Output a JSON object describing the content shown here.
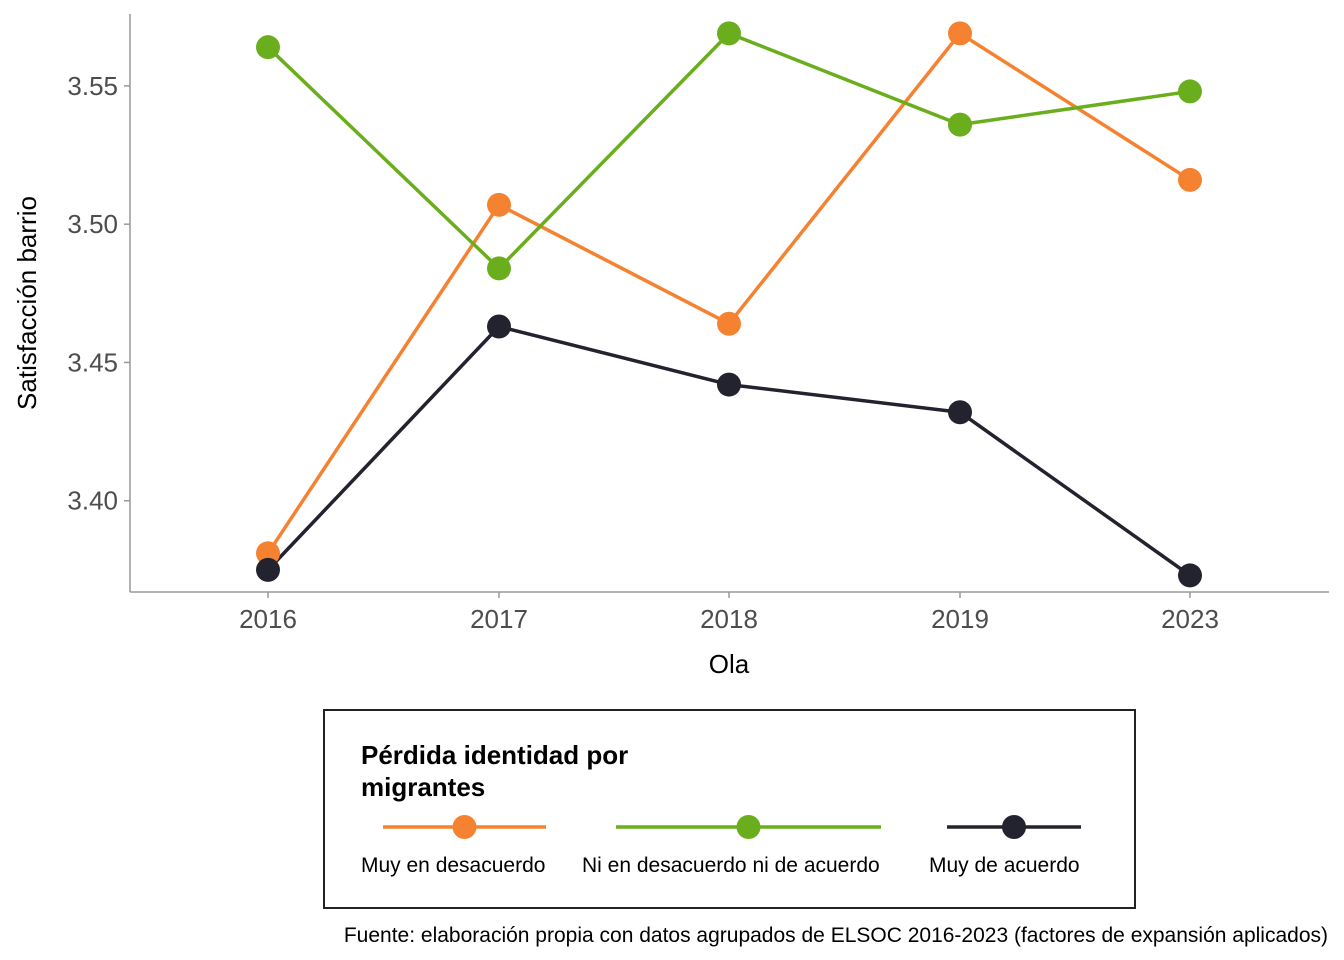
{
  "chart_data": {
    "type": "line",
    "title": "",
    "xlabel": "Ola",
    "ylabel": "Satisfacción barrio",
    "categories": [
      "2016",
      "2017",
      "2018",
      "2019",
      "2023"
    ],
    "y_ticks": [
      "3.40",
      "3.45",
      "3.50",
      "3.55"
    ],
    "ylim": [
      3.367,
      3.576
    ],
    "grid": false,
    "legend": {
      "title_lines": [
        "Pérdida identidad por",
        "migrantes"
      ],
      "placement": "bottom"
    },
    "series": [
      {
        "name": "Muy en desacuerdo",
        "color": "#F58231",
        "values": [
          3.381,
          3.507,
          3.464,
          3.569,
          3.516
        ]
      },
      {
        "name": "Ni en desacuerdo ni de acuerdo",
        "color": "#6AAE1E",
        "values": [
          3.564,
          3.484,
          3.569,
          3.536,
          3.548
        ]
      },
      {
        "name": "Muy de acuerdo",
        "color": "#23232F",
        "values": [
          3.375,
          3.463,
          3.442,
          3.432,
          3.373
        ]
      }
    ],
    "caption": "Fuente: elaboración propia con datos agrupados de ELSOC 2016-2023 (factores de expansión aplicados)"
  }
}
